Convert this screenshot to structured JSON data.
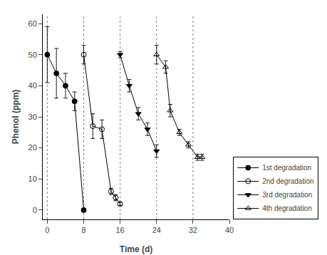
{
  "chart_data": {
    "type": "line",
    "xlabel": "Time (d)",
    "ylabel": "Phenol (ppm)",
    "series": [
      {
        "name": "1st degradation",
        "x": [
          0,
          2,
          4,
          6,
          8
        ],
        "values": [
          50,
          44,
          40,
          35,
          0
        ],
        "errors": [
          9,
          8,
          4,
          3,
          0.5
        ],
        "color": "black",
        "marker": "circle"
      },
      {
        "name": "2nd degradation",
        "x": [
          8,
          10,
          12,
          14,
          15,
          16
        ],
        "values": [
          50,
          27,
          26,
          6,
          4,
          2
        ],
        "errors": [
          3,
          4,
          3,
          1,
          1,
          0.5
        ],
        "color": "black",
        "marker": "circle-open"
      },
      {
        "name": "3rd degradation",
        "x": [
          16,
          18,
          20,
          22,
          24
        ],
        "values": [
          50,
          40,
          31,
          26,
          19
        ],
        "errors": [
          1,
          2,
          2,
          2,
          2
        ],
        "color": "black",
        "marker": "triangle-down"
      },
      {
        "name": "4th degradation",
        "x": [
          24,
          26,
          27,
          29,
          31,
          33,
          34
        ],
        "values": [
          50,
          46,
          32,
          25,
          21,
          17,
          17
        ],
        "errors": [
          3,
          2,
          2,
          1,
          1,
          1,
          1
        ],
        "color": "black",
        "marker": "triangle-up-open"
      }
    ],
    "vlines": [
      0,
      8,
      16,
      24,
      32
    ],
    "xlim": [
      -1,
      40
    ],
    "ylim": [
      -3,
      63
    ],
    "xticks": [
      0,
      8,
      16,
      24,
      32,
      40
    ],
    "yticks": [
      0,
      10,
      20,
      30,
      40,
      50,
      60
    ],
    "grid": false,
    "legend": "lower right"
  }
}
